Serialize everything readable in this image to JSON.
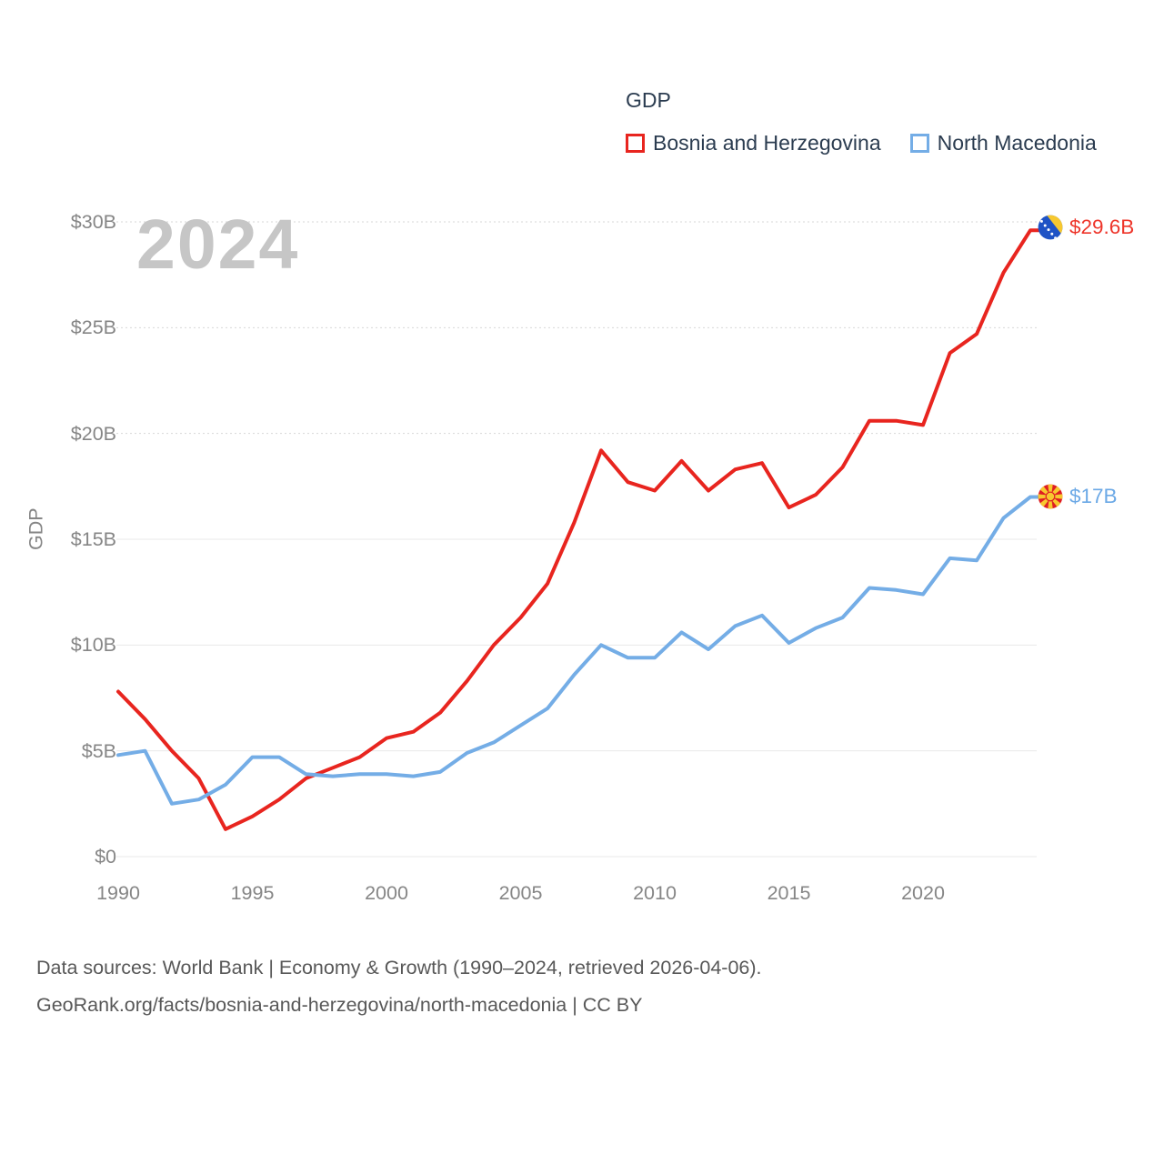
{
  "watermark": "2024",
  "legend": {
    "title": "GDP",
    "items": [
      {
        "label": "Bosnia and Herzegovina",
        "color": "#e8251f"
      },
      {
        "label": "North Macedonia",
        "color": "#74ade6"
      }
    ]
  },
  "axes": {
    "y_label": "GDP"
  },
  "end_labels": {
    "bosnia": {
      "value": "$29.6B",
      "flag_icon": "bosnia-and-herzegovina-flag"
    },
    "north_macedonia": {
      "value": "$17B",
      "flag_icon": "north-macedonia-flag"
    }
  },
  "footer": {
    "line1": "Data sources: World Bank | Economy & Growth (1990–2024, retrieved 2026-04-06).",
    "line2": "GeoRank.org/facts/bosnia-and-herzegovina/north-macedonia | CC BY"
  },
  "chart_data": {
    "type": "line",
    "title": "GDP",
    "unit": "billion USD",
    "x": [
      1990,
      1991,
      1992,
      1993,
      1994,
      1995,
      1996,
      1997,
      1998,
      1999,
      2000,
      2001,
      2002,
      2003,
      2004,
      2005,
      2006,
      2007,
      2008,
      2009,
      2010,
      2011,
      2012,
      2013,
      2014,
      2015,
      2016,
      2017,
      2018,
      2019,
      2020,
      2021,
      2022,
      2023,
      2024
    ],
    "series": [
      {
        "name": "Bosnia and Herzegovina",
        "color": "#e8251f",
        "values": [
          7.8,
          6.5,
          5.0,
          3.7,
          1.3,
          1.9,
          2.7,
          3.7,
          4.2,
          4.7,
          5.6,
          5.9,
          6.8,
          8.3,
          10.0,
          11.3,
          12.9,
          15.8,
          19.2,
          17.7,
          17.3,
          18.7,
          17.3,
          18.3,
          18.6,
          16.5,
          17.1,
          18.4,
          20.6,
          20.6,
          20.4,
          23.8,
          24.7,
          27.6,
          29.6
        ]
      },
      {
        "name": "North Macedonia",
        "color": "#74ade6",
        "values": [
          4.8,
          5.0,
          2.5,
          2.7,
          3.4,
          4.7,
          4.7,
          3.9,
          3.8,
          3.9,
          3.9,
          3.8,
          4.0,
          4.9,
          5.4,
          6.2,
          7.0,
          8.6,
          10.0,
          9.4,
          9.4,
          10.6,
          9.8,
          10.9,
          11.4,
          10.1,
          10.8,
          11.3,
          12.7,
          12.6,
          12.4,
          14.1,
          14.0,
          16.0,
          17.0
        ]
      }
    ],
    "ylabel": "GDP",
    "ylim": [
      0,
      30
    ],
    "yticks": [
      {
        "label": "$0",
        "value": 0
      },
      {
        "label": "$5B",
        "value": 5
      },
      {
        "label": "$10B",
        "value": 10
      },
      {
        "label": "$15B",
        "value": 15
      },
      {
        "label": "$20B",
        "value": 20
      },
      {
        "label": "$25B",
        "value": 25
      },
      {
        "label": "$30B",
        "value": 30
      }
    ],
    "xticks": [
      {
        "label": "1990",
        "year": 1990
      },
      {
        "label": "1995",
        "year": 1995
      },
      {
        "label": "2000",
        "year": 2000
      },
      {
        "label": "2005",
        "year": 2005
      },
      {
        "label": "2010",
        "year": 2010
      },
      {
        "label": "2015",
        "year": 2015
      },
      {
        "label": "2020",
        "year": 2020
      }
    ],
    "grid": "horizontal",
    "legend_position": "top-right",
    "end_labels": [
      {
        "series": "Bosnia and Herzegovina",
        "label": "$29.6B",
        "value": 29.6
      },
      {
        "series": "North Macedonia",
        "label": "$17B",
        "value": 17.0
      }
    ]
  }
}
